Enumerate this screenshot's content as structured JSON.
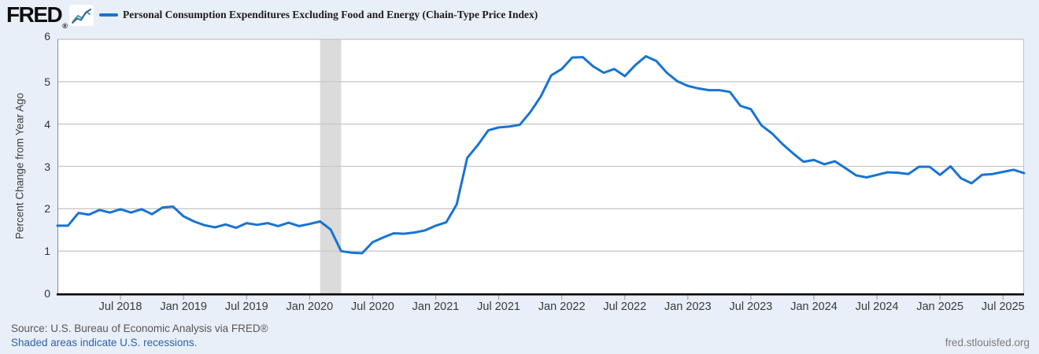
{
  "header": {
    "logo_text": "FRED",
    "logo_registered": "®",
    "series_title": "Personal Consumption Expenditures Excluding Food and Energy (Chain-Type Price Index)"
  },
  "footer": {
    "source": "Source: U.S. Bureau of Economic Analysis via FRED®",
    "recession_note": "Shaded areas indicate U.S. recessions.",
    "site": "fred.stlouisfed.org"
  },
  "colors": {
    "background": "#e8eff8",
    "plot_background": "#ffffff",
    "line": "#1874d2",
    "recession_band": "#dbdbdb",
    "gridline": "#c9c9c9",
    "axis_black": "#000000"
  },
  "chart_data": {
    "type": "line",
    "title": "Personal Consumption Expenditures Excluding Food and Energy (Chain-Type Price Index)",
    "xlabel": "",
    "ylabel": "Percent Change from Year Ago",
    "ylim": [
      0,
      6
    ],
    "y_ticks": [
      0,
      1,
      2,
      3,
      4,
      5,
      6
    ],
    "grid": true,
    "legend_position": "top-left",
    "line_color": "#1874d2",
    "recession_color": "#dbdbdb",
    "x_range": {
      "start": "Jan 2018",
      "end": "Sep 2025",
      "frequency": "monthly",
      "points": 93
    },
    "x_ticks": [
      {
        "label": "Jul 2018",
        "m": 6
      },
      {
        "label": "Jan 2019",
        "m": 12
      },
      {
        "label": "Jul 2019",
        "m": 18
      },
      {
        "label": "Jan 2020",
        "m": 24
      },
      {
        "label": "Jul 2020",
        "m": 30
      },
      {
        "label": "Jan 2021",
        "m": 36
      },
      {
        "label": "Jul 2021",
        "m": 42
      },
      {
        "label": "Jan 2022",
        "m": 48
      },
      {
        "label": "Jul 2022",
        "m": 54
      },
      {
        "label": "Jan 2023",
        "m": 60
      },
      {
        "label": "Jul 2023",
        "m": 66
      },
      {
        "label": "Jan 2024",
        "m": 72
      },
      {
        "label": "Jul 2024",
        "m": 78
      },
      {
        "label": "Jan 2025",
        "m": 84
      },
      {
        "label": "Jul 2025",
        "m": 90
      }
    ],
    "recession_bands": [
      {
        "name": "COVID-19 recession",
        "start": "Feb 2020",
        "end": "Apr 2020",
        "start_m": 25,
        "end_m": 27
      }
    ],
    "series": [
      {
        "name": "Personal Consumption Expenditures Excluding Food and Energy (Chain-Type Price Index)",
        "units": "Percent Change from Year Ago",
        "start": "Jan 2018",
        "values": [
          1.6,
          1.6,
          1.9,
          1.86,
          1.97,
          1.91,
          1.99,
          1.91,
          1.99,
          1.87,
          2.03,
          2.05,
          1.82,
          1.7,
          1.61,
          1.56,
          1.63,
          1.55,
          1.66,
          1.62,
          1.66,
          1.59,
          1.67,
          1.59,
          1.64,
          1.7,
          1.51,
          1.0,
          0.96,
          0.95,
          1.21,
          1.32,
          1.42,
          1.41,
          1.44,
          1.49,
          1.6,
          1.68,
          2.1,
          3.2,
          3.5,
          3.85,
          3.92,
          3.94,
          3.98,
          4.28,
          4.65,
          5.15,
          5.3,
          5.57,
          5.58,
          5.36,
          5.21,
          5.3,
          5.13,
          5.39,
          5.6,
          5.49,
          5.21,
          5.01,
          4.9,
          4.84,
          4.8,
          4.8,
          4.76,
          4.43,
          4.35,
          3.97,
          3.78,
          3.53,
          3.31,
          3.11,
          3.15,
          3.05,
          3.12,
          2.96,
          2.79,
          2.74,
          2.8,
          2.86,
          2.85,
          2.82,
          2.99,
          2.99,
          2.8,
          3.0,
          2.72,
          2.6,
          2.8,
          2.82,
          2.87,
          2.92,
          2.84
        ]
      }
    ]
  }
}
